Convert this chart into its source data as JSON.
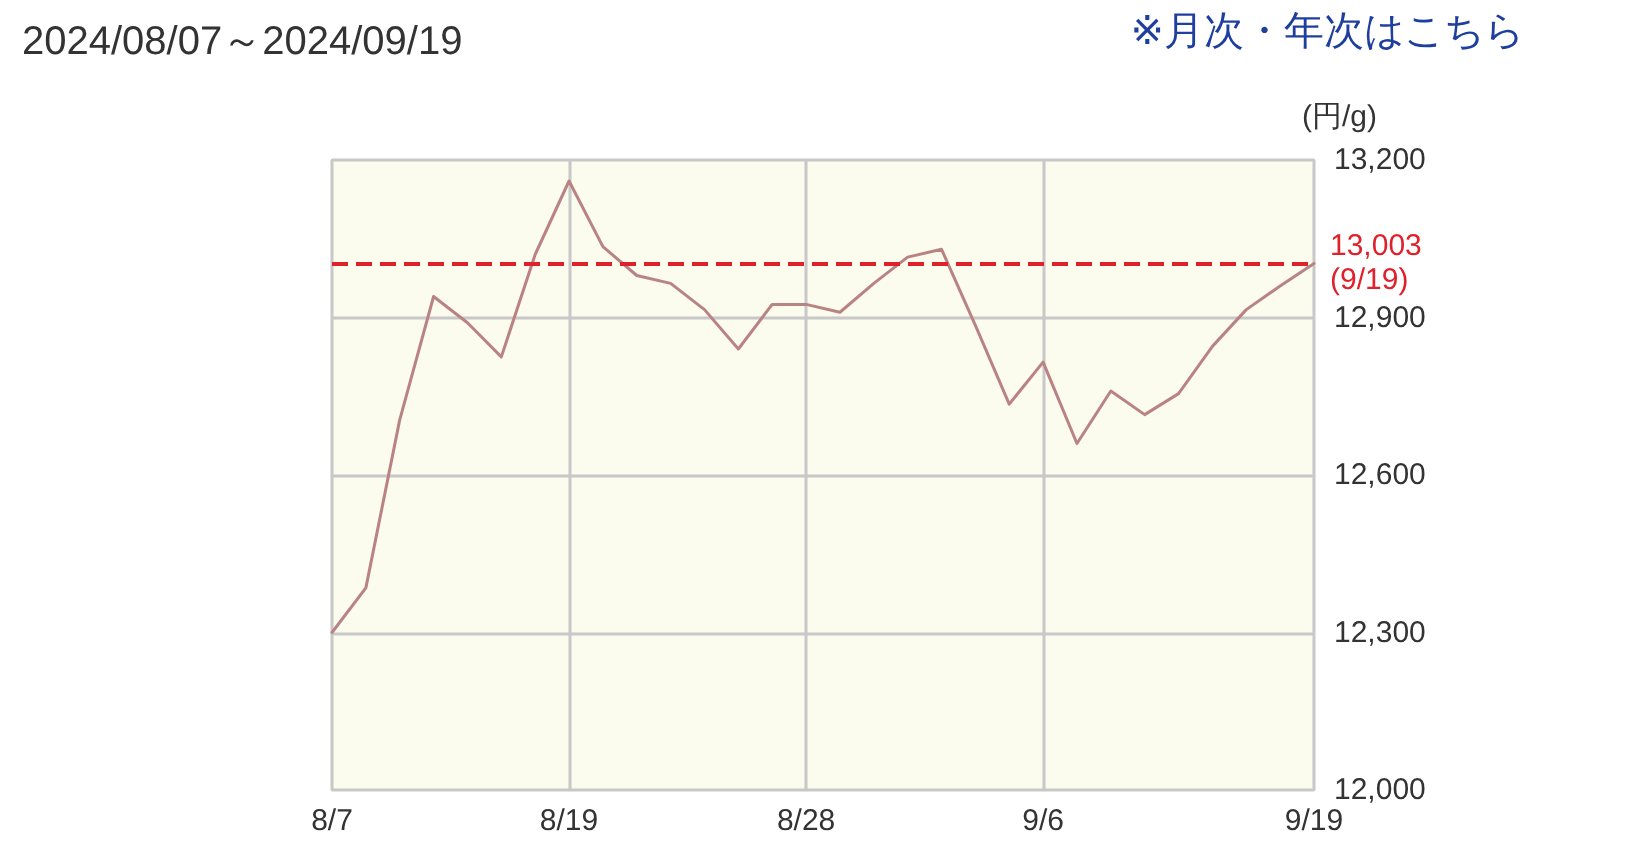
{
  "chart_data": {
    "type": "line",
    "title": "2024/08/07～2024/09/19",
    "ylabel": "(円/g)",
    "annotations": [
      "※月次・年次はこちら"
    ],
    "categories": [
      "8/7",
      null,
      null,
      null,
      null,
      null,
      null,
      "8/19",
      null,
      null,
      null,
      null,
      null,
      null,
      "8/28",
      null,
      null,
      null,
      null,
      null,
      null,
      "9/6",
      null,
      null,
      null,
      null,
      null,
      null,
      null,
      "9/19"
    ],
    "series": [
      {
        "color": "#b98383",
        "values": [
          12300,
          12385,
          12705,
          12940,
          12890,
          12825,
          13020,
          13160,
          13035,
          12980,
          12965,
          12915,
          12840,
          12925,
          12925,
          12910,
          12965,
          13015,
          13030,
          12885,
          12735,
          12815,
          12660,
          12760,
          12715,
          12755,
          12845,
          12915,
          12960,
          13003
        ]
      }
    ],
    "ylim": [
      12000,
      13200
    ],
    "yticks": [
      {
        "value": 12000,
        "label": "12,000"
      },
      {
        "value": 12300,
        "label": "12,300"
      },
      {
        "value": 12600,
        "label": "12,600"
      },
      {
        "value": 12900,
        "label": "12,900"
      },
      {
        "value": 13200,
        "label": "13,200"
      }
    ],
    "ref_lines": [
      {
        "axis": "y",
        "value": 13003,
        "label": "13,003\n(9/19)",
        "color": "#e0202a",
        "line_style": "dashed"
      }
    ],
    "grid": true,
    "marker": "none",
    "line_style": "solid"
  }
}
